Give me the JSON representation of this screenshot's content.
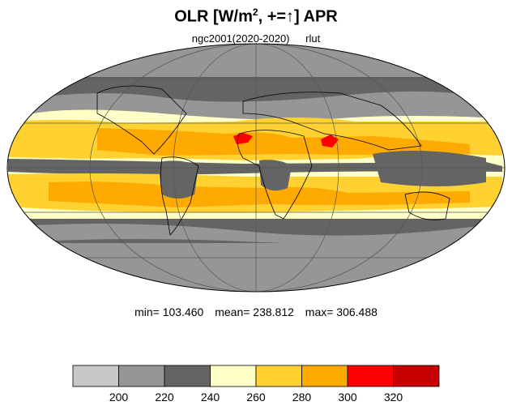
{
  "title": {
    "main": "OLR [W/m",
    "superscript": "2",
    "suffix": ", +=↑] APR"
  },
  "subtitle": {
    "case": "ngc2001(2020-2020)",
    "variable": "rlut"
  },
  "stats": {
    "min": "min= 103.460",
    "mean": "mean= 238.812",
    "max": "max= 306.488"
  },
  "colorbar": {
    "colors": [
      "#c8c8c8",
      "#969696",
      "#646464",
      "#ffffc8",
      "#ffd232",
      "#ffaa00",
      "#ff0000",
      "#c80000"
    ],
    "levels": [
      "200",
      "220",
      "240",
      "260",
      "280",
      "300",
      "320"
    ]
  },
  "map": {
    "projection": "mollweide",
    "ocean_base_color": "#ffffc8",
    "gridline_color": "#555555",
    "coastline_color": "#000000"
  }
}
